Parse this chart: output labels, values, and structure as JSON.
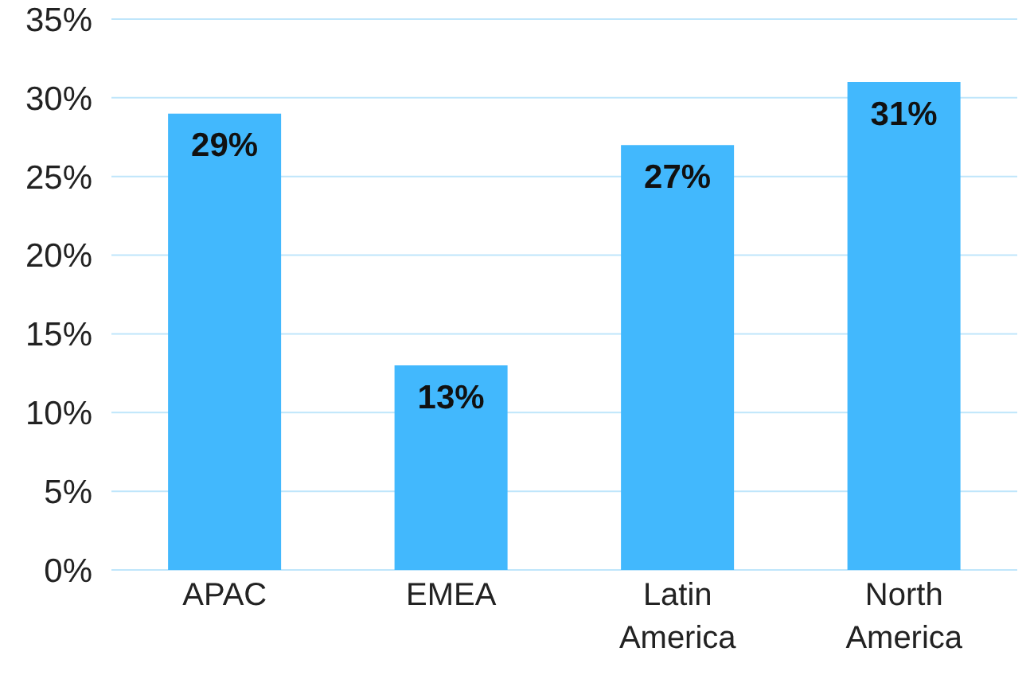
{
  "chart_data": {
    "type": "bar",
    "categories": [
      "APAC",
      "EMEA",
      "Latin America",
      "North America"
    ],
    "values": [
      29,
      13,
      27,
      31
    ],
    "value_labels": [
      "29%",
      "13%",
      "27%",
      "31%"
    ],
    "color": "#42b8fd",
    "ylim": [
      0,
      35
    ],
    "yticks": [
      {
        "value": 0,
        "label": "0%"
      },
      {
        "value": 5,
        "label": "5%"
      },
      {
        "value": 10,
        "label": "10%"
      },
      {
        "value": 15,
        "label": "15%"
      },
      {
        "value": 20,
        "label": "20%"
      },
      {
        "value": 25,
        "label": "25%"
      },
      {
        "value": 30,
        "label": "30%"
      },
      {
        "value": 35,
        "label": "35%"
      }
    ],
    "grid": "y"
  }
}
